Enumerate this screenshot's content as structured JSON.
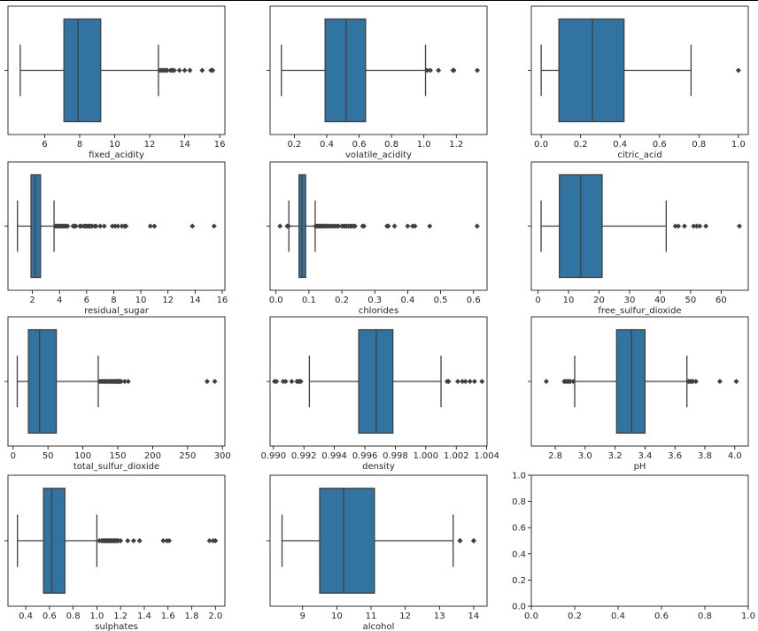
{
  "figure": {
    "box_color": "#3274a1",
    "line_color": "#3f3f3f"
  },
  "chart_data": [
    {
      "type": "box",
      "orientation": "horizontal",
      "xlabel": "fixed_acidity",
      "xlim": [
        3.9,
        16.3
      ],
      "ticks": [
        6,
        8,
        10,
        12,
        14,
        16
      ],
      "tick_labels": [
        "6",
        "8",
        "10",
        "12",
        "14",
        "16"
      ],
      "min": 4.6,
      "q1": 7.1,
      "median": 7.9,
      "q3": 9.2,
      "max": 12.5,
      "outliers": [
        12.6,
        12.7,
        12.8,
        12.9,
        13.0,
        13.2,
        13.3,
        13.4,
        13.7,
        14.0,
        14.3,
        15.0,
        15.5,
        15.6
      ]
    },
    {
      "type": "box",
      "orientation": "horizontal",
      "xlabel": "volatile_acidity",
      "xlim": [
        0.05,
        1.39
      ],
      "ticks": [
        0.2,
        0.4,
        0.6,
        0.8,
        1.0,
        1.2
      ],
      "tick_labels": [
        "0.2",
        "0.4",
        "0.6",
        "0.8",
        "1.0",
        "1.2"
      ],
      "min": 0.12,
      "q1": 0.39,
      "median": 0.52,
      "q3": 0.64,
      "max": 1.01,
      "outliers": [
        1.02,
        1.04,
        1.09,
        1.18,
        1.185,
        1.33
      ]
    },
    {
      "type": "box",
      "orientation": "horizontal",
      "xlabel": "citric_acid",
      "xlim": [
        -0.05,
        1.05
      ],
      "ticks": [
        0.0,
        0.2,
        0.4,
        0.6,
        0.8,
        1.0
      ],
      "tick_labels": [
        "0.0",
        "0.2",
        "0.4",
        "0.6",
        "0.8",
        "1.0"
      ],
      "min": 0.0,
      "q1": 0.09,
      "median": 0.26,
      "q3": 0.42,
      "max": 0.76,
      "outliers": [
        1.0
      ]
    },
    {
      "type": "box",
      "orientation": "horizontal",
      "xlabel": "residual_sugar",
      "xlim": [
        0.2,
        16.2
      ],
      "ticks": [
        2,
        4,
        6,
        8,
        10,
        12,
        14,
        16
      ],
      "tick_labels": [
        "2",
        "4",
        "6",
        "8",
        "10",
        "12",
        "14",
        "16"
      ],
      "min": 0.9,
      "q1": 1.9,
      "median": 2.2,
      "q3": 2.6,
      "max": 3.6,
      "outliers": [
        3.7,
        3.8,
        3.9,
        4.0,
        4.1,
        4.2,
        4.3,
        4.4,
        4.5,
        4.6,
        5.0,
        5.1,
        5.2,
        5.5,
        5.6,
        5.8,
        5.9,
        6.0,
        6.1,
        6.2,
        6.3,
        6.4,
        6.6,
        6.7,
        7.0,
        7.3,
        7.9,
        8.1,
        8.3,
        8.6,
        8.8,
        8.9,
        10.7,
        11.0,
        13.8,
        15.4
      ]
    },
    {
      "type": "box",
      "orientation": "horizontal",
      "xlabel": "chlorides",
      "xlim": [
        -0.018,
        0.641
      ],
      "ticks": [
        0.0,
        0.1,
        0.2,
        0.3,
        0.4,
        0.5,
        0.6
      ],
      "tick_labels": [
        "0.0",
        "0.1",
        "0.2",
        "0.3",
        "0.4",
        "0.5",
        "0.6"
      ],
      "min": 0.039,
      "q1": 0.07,
      "median": 0.079,
      "q3": 0.09,
      "max": 0.119,
      "outliers": [
        0.012,
        0.034,
        0.038,
        0.12,
        0.123,
        0.126,
        0.13,
        0.134,
        0.138,
        0.142,
        0.146,
        0.15,
        0.155,
        0.16,
        0.165,
        0.17,
        0.176,
        0.18,
        0.186,
        0.19,
        0.2,
        0.205,
        0.21,
        0.214,
        0.22,
        0.226,
        0.23,
        0.236,
        0.24,
        0.263,
        0.267,
        0.337,
        0.341,
        0.36,
        0.4,
        0.415,
        0.422,
        0.467,
        0.611
      ]
    },
    {
      "type": "box",
      "orientation": "horizontal",
      "xlabel": "free_sulfur_dioxide",
      "xlim": [
        -2.2,
        68.9
      ],
      "ticks": [
        0,
        10,
        20,
        30,
        40,
        50,
        60
      ],
      "tick_labels": [
        "0",
        "10",
        "20",
        "30",
        "40",
        "50",
        "60"
      ],
      "min": 1,
      "q1": 7,
      "median": 14,
      "q3": 21,
      "max": 42,
      "outliers": [
        45,
        46,
        48,
        51,
        52,
        53,
        55,
        66
      ]
    },
    {
      "type": "box",
      "orientation": "horizontal",
      "xlabel": "total_sulfur_dioxide",
      "xlim": [
        -7.3,
        303.5
      ],
      "ticks": [
        0,
        50,
        100,
        150,
        200,
        250,
        300
      ],
      "tick_labels": [
        "0",
        "50",
        "100",
        "150",
        "200",
        "250",
        "300"
      ],
      "min": 6,
      "q1": 22,
      "median": 38,
      "q3": 62,
      "max": 122,
      "outliers": [
        124,
        126,
        128,
        130,
        132,
        134,
        136,
        138,
        140,
        142,
        144,
        145,
        147,
        148,
        149,
        151,
        152,
        153,
        155,
        160,
        165,
        278,
        289
      ]
    },
    {
      "type": "box",
      "orientation": "horizontal",
      "xlabel": "density",
      "xlim": [
        0.98978,
        1.00402
      ],
      "ticks": [
        0.99,
        0.992,
        0.994,
        0.996,
        0.998,
        1.0,
        1.002,
        1.004
      ],
      "tick_labels": [
        "0.990",
        "0.992",
        "0.994",
        "0.996",
        "0.998",
        "1.000",
        "1.002",
        "1.004"
      ],
      "min": 0.99236,
      "q1": 0.9956,
      "median": 0.99675,
      "q3": 0.99784,
      "max": 1.001,
      "outliers": [
        0.99007,
        0.9902,
        0.99064,
        0.9908,
        0.9912,
        0.99154,
        0.99162,
        0.9917,
        0.9918,
        1.0014,
        1.0015,
        1.0021,
        1.0024,
        1.0026,
        1.0029,
        1.0032,
        1.00369
      ]
    },
    {
      "type": "box",
      "orientation": "horizontal",
      "xlabel": "pH",
      "xlim": [
        2.64,
        4.09
      ],
      "ticks": [
        2.8,
        3.0,
        3.2,
        3.4,
        3.6,
        3.8,
        4.0
      ],
      "tick_labels": [
        "2.8",
        "3.0",
        "3.2",
        "3.4",
        "3.6",
        "3.8",
        "4.0"
      ],
      "min": 2.93,
      "q1": 3.21,
      "median": 3.31,
      "q3": 3.4,
      "max": 3.68,
      "outliers": [
        2.74,
        2.86,
        2.87,
        2.88,
        2.89,
        2.9,
        2.92,
        3.69,
        3.7,
        3.71,
        3.72,
        3.74,
        3.9,
        4.01
      ]
    },
    {
      "type": "box",
      "orientation": "horizontal",
      "xlabel": "sulphates",
      "xlim": [
        0.25,
        2.08
      ],
      "ticks": [
        0.4,
        0.6,
        0.8,
        1.0,
        1.2,
        1.4,
        1.6,
        1.8,
        2.0
      ],
      "tick_labels": [
        "0.4",
        "0.6",
        "0.8",
        "1.0",
        "1.2",
        "1.4",
        "1.6",
        "1.8",
        "2.0"
      ],
      "min": 0.33,
      "q1": 0.55,
      "median": 0.62,
      "q3": 0.73,
      "max": 1.0,
      "outliers": [
        1.02,
        1.04,
        1.05,
        1.06,
        1.07,
        1.08,
        1.09,
        1.1,
        1.11,
        1.12,
        1.13,
        1.14,
        1.15,
        1.16,
        1.17,
        1.18,
        1.2,
        1.26,
        1.31,
        1.36,
        1.56,
        1.59,
        1.61,
        1.95,
        1.98,
        2.0
      ]
    },
    {
      "type": "box",
      "orientation": "horizontal",
      "xlabel": "alcohol",
      "xlim": [
        8.05,
        14.39
      ],
      "ticks": [
        9,
        10,
        11,
        12,
        13,
        14
      ],
      "tick_labels": [
        "9",
        "10",
        "11",
        "12",
        "13",
        "14"
      ],
      "min": 8.4,
      "q1": 9.5,
      "median": 10.2,
      "q3": 11.1,
      "max": 13.4,
      "outliers": [
        13.6,
        13.6,
        14.0,
        14.0
      ]
    },
    {
      "type": "empty",
      "xlim": [
        0.0,
        1.0
      ],
      "ylim": [
        0.0,
        1.0
      ],
      "ticks": [
        0.0,
        0.2,
        0.4,
        0.6,
        0.8,
        1.0
      ],
      "tick_labels": [
        "0.0",
        "0.2",
        "0.4",
        "0.6",
        "0.8",
        "1.0"
      ],
      "yticks": [
        0.0,
        0.2,
        0.4,
        0.6,
        0.8,
        1.0
      ],
      "ytick_labels": [
        "0.0",
        "0.2",
        "0.4",
        "0.6",
        "0.8",
        "1.0"
      ]
    }
  ]
}
